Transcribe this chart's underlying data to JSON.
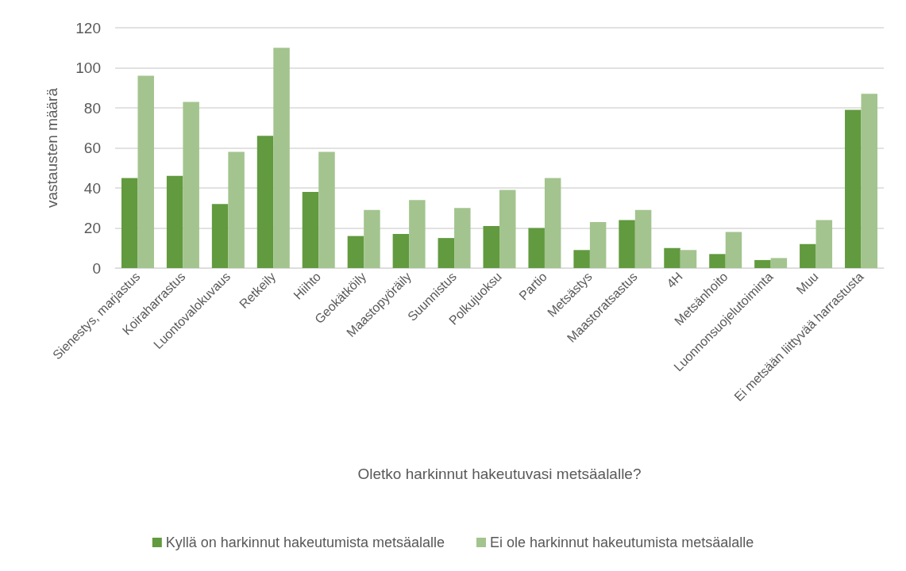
{
  "chart_data": {
    "type": "bar",
    "xlabel": "Oletko harkinnut hakeutuvasi metsäalalle?",
    "ylabel": "vastausten määrä",
    "categories": [
      "Sienestys, marjastus",
      "Koiraharrastus",
      "Luontovalokuvaus",
      "Retkeily",
      "Hiihto",
      "Geokätköily",
      "Maastopyöräily",
      "Suunnistus",
      "Polkujuoksu",
      "Partio",
      "Metsästys",
      "Maastoratsastus",
      "4H",
      "Metsänhoito",
      "Luonnonsuojelutoiminta",
      "Muu",
      "Ei metsään liittyvää harrastusta"
    ],
    "series": [
      {
        "name": "Kyllä on harkinnut hakeutumista metsäalalle",
        "color": "#629a3f",
        "values": [
          45,
          46,
          32,
          66,
          38,
          16,
          17,
          15,
          21,
          20,
          9,
          24,
          10,
          7,
          4,
          12,
          79
        ]
      },
      {
        "name": "Ei ole harkinnut hakeutumista metsäalalle",
        "color": "#a3c48e",
        "values": [
          96,
          83,
          58,
          110,
          58,
          29,
          34,
          30,
          39,
          45,
          23,
          29,
          9,
          18,
          5,
          24,
          87
        ]
      }
    ],
    "ylim": [
      0,
      120
    ],
    "yticks": [
      0,
      20,
      40,
      60,
      80,
      100,
      120
    ],
    "grid": "y",
    "legend": "bottom"
  }
}
